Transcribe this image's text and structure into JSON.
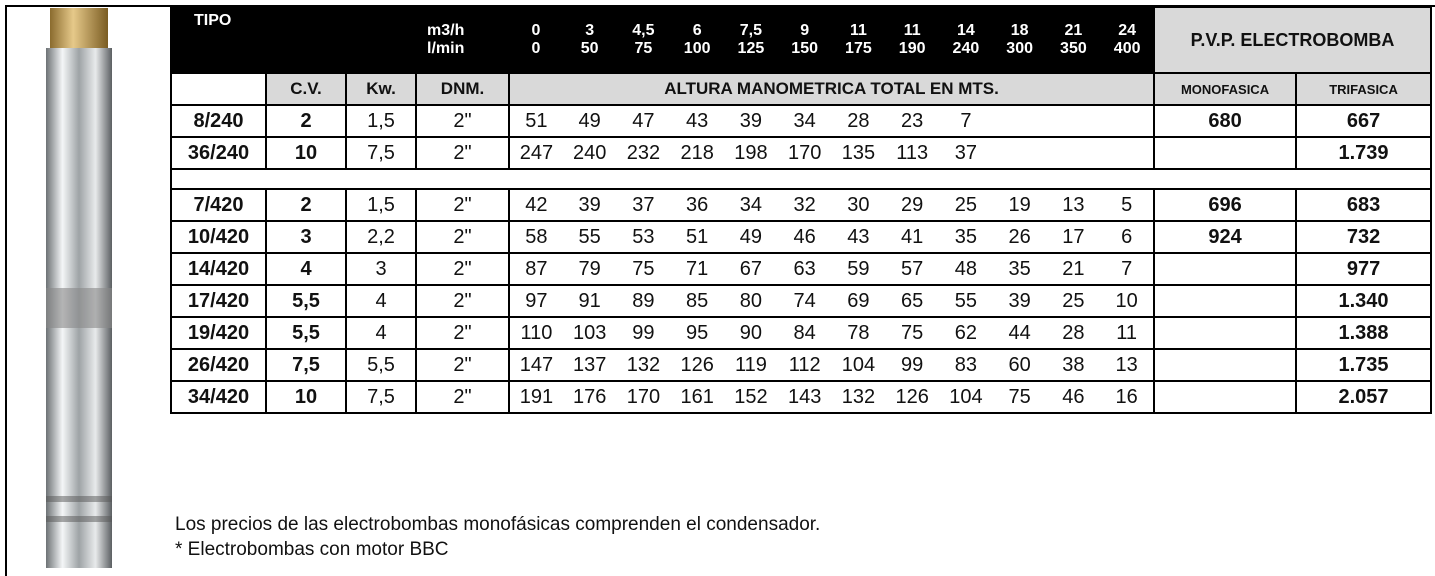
{
  "table": {
    "header": {
      "tipo": "TIPO",
      "flow_units": [
        "m3/h",
        "l/min"
      ],
      "flow": [
        [
          "0",
          "0"
        ],
        [
          "3",
          "50"
        ],
        [
          "4,5",
          "75"
        ],
        [
          "6",
          "100"
        ],
        [
          "7,5",
          "125"
        ],
        [
          "9",
          "150"
        ],
        [
          "11",
          "175"
        ],
        [
          "11",
          "190"
        ],
        [
          "14",
          "240"
        ],
        [
          "18",
          "300"
        ],
        [
          "21",
          "350"
        ],
        [
          "24",
          "400"
        ]
      ],
      "pvp": "P.V.P. ELECTROBOMBA"
    },
    "subheader": {
      "cv": "C.V.",
      "kw": "Kw.",
      "dnm": "DNM.",
      "altura": "ALTURA MANOMETRICA TOTAL EN MTS.",
      "mono": "MONOFASICA",
      "tri": "TRIFASICA"
    },
    "groups": [
      {
        "rows": [
          {
            "tipo": "8/240",
            "cv": "2",
            "kw": "1,5",
            "dnm": "2\"",
            "heads": [
              "51",
              "49",
              "47",
              "43",
              "39",
              "34",
              "28",
              "23",
              "7"
            ],
            "mono": "680",
            "tri": "667"
          },
          {
            "tipo": "36/240",
            "cv": "10",
            "kw": "7,5",
            "dnm": "2\"",
            "heads": [
              "247",
              "240",
              "232",
              "218",
              "198",
              "170",
              "135",
              "113",
              "37"
            ],
            "mono": null,
            "tri": "1.739"
          }
        ]
      },
      {
        "rows": [
          {
            "tipo": "7/420",
            "cv": "2",
            "kw": "1,5",
            "dnm": "2\"",
            "heads": [
              "42",
              "39",
              "37",
              "36",
              "34",
              "32",
              "30",
              "29",
              "25",
              "19",
              "13",
              "5"
            ],
            "mono": "696",
            "tri": "683"
          },
          {
            "tipo": "10/420",
            "cv": "3",
            "kw": "2,2",
            "dnm": "2\"",
            "heads": [
              "58",
              "55",
              "53",
              "51",
              "49",
              "46",
              "43",
              "41",
              "35",
              "26",
              "17",
              "6"
            ],
            "mono": "924",
            "tri": "732"
          },
          {
            "tipo": "14/420",
            "cv": "4",
            "kw": "3",
            "dnm": "2\"",
            "heads": [
              "87",
              "79",
              "75",
              "71",
              "67",
              "63",
              "59",
              "57",
              "48",
              "35",
              "21",
              "7"
            ],
            "mono": null,
            "tri": "977"
          },
          {
            "tipo": "17/420",
            "cv": "5,5",
            "kw": "4",
            "dnm": "2\"",
            "heads": [
              "97",
              "91",
              "89",
              "85",
              "80",
              "74",
              "69",
              "65",
              "55",
              "39",
              "25",
              "10"
            ],
            "mono": null,
            "tri": "1.340"
          },
          {
            "tipo": "19/420",
            "cv": "5,5",
            "kw": "4",
            "dnm": "2\"",
            "heads": [
              "110",
              "103",
              "99",
              "95",
              "90",
              "84",
              "78",
              "75",
              "62",
              "44",
              "28",
              "11"
            ],
            "mono": null,
            "tri": "1.388"
          },
          {
            "tipo": "26/420",
            "cv": "7,5",
            "kw": "5,5",
            "dnm": "2\"",
            "heads": [
              "147",
              "137",
              "132",
              "126",
              "119",
              "112",
              "104",
              "99",
              "83",
              "60",
              "38",
              "13"
            ],
            "mono": null,
            "tri": "1.735"
          },
          {
            "tipo": "34/420",
            "cv": "10",
            "kw": "7,5",
            "dnm": "2\"",
            "heads": [
              "191",
              "176",
              "170",
              "161",
              "152",
              "143",
              "132",
              "126",
              "104",
              "75",
              "46",
              "16"
            ],
            "mono": null,
            "tri": "2.057"
          }
        ]
      }
    ]
  },
  "notes": [
    "Los precios de las electrobombas monofásicas comprenden el condensador.",
    "* Electrobombas con motor BBC"
  ]
}
